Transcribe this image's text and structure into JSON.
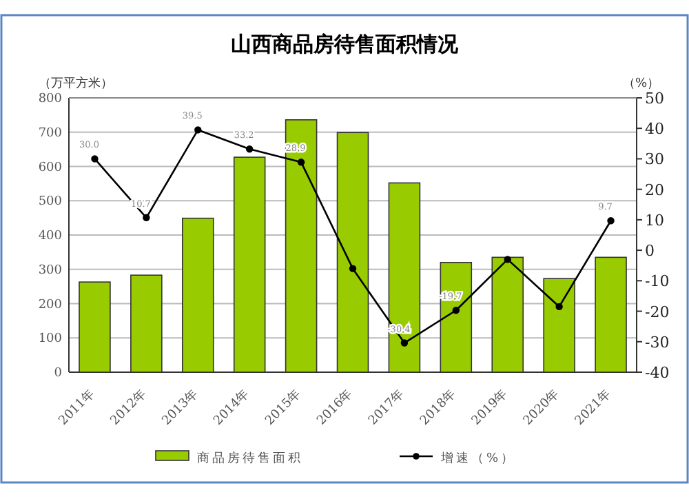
{
  "chart_data": {
    "type": "bar",
    "title": "山西商品房待售面积情况",
    "ylabel": "（万平方米）",
    "y2label": "（%）",
    "categories": [
      "2011年",
      "2012年",
      "2013年",
      "2014年",
      "2015年",
      "2016年",
      "2017年",
      "2018年",
      "2019年",
      "2020年",
      "2021年"
    ],
    "series": [
      {
        "name": "商品房待售面积",
        "color": "#99cc00",
        "values": [
          263,
          283,
          449,
          627,
          736,
          699,
          552,
          320,
          335,
          273,
          335
        ]
      },
      {
        "name": "增速（%）",
        "type": "line",
        "axis": "y2",
        "color": "#000000",
        "marker": "circle",
        "values": [
          30.0,
          10.7,
          39.5,
          33.2,
          28.9,
          -6,
          -30.4,
          -19.7,
          -3,
          -18.5,
          9.7
        ],
        "value_labels": [
          "30.0",
          "10.7",
          "39.5",
          "33.2",
          "28.9",
          null,
          "-30.4",
          "-19.7",
          null,
          null,
          "9.7"
        ]
      }
    ],
    "ylim": [
      0,
      800
    ],
    "yticks": [
      0,
      100,
      200,
      300,
      400,
      500,
      600,
      700,
      800
    ],
    "y2lim": [
      -40,
      50
    ],
    "y2ticks": [
      -40,
      -30,
      -20,
      -10,
      0,
      10,
      20,
      30,
      40,
      50
    ],
    "grid": "y",
    "legend": "bottom"
  }
}
